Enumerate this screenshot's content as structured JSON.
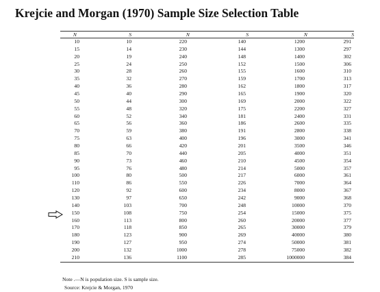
{
  "title": "Krejcie and Morgan (1970) Sample Size Selection Table",
  "headers": [
    "N",
    "S",
    "N",
    "S",
    "N",
    "S"
  ],
  "rows": [
    [
      "10",
      "10",
      "220",
      "140",
      "1200",
      "291"
    ],
    [
      "15",
      "14",
      "230",
      "144",
      "1300",
      "297"
    ],
    [
      "20",
      "19",
      "240",
      "148",
      "1400",
      "302"
    ],
    [
      "25",
      "24",
      "250",
      "152",
      "1500",
      "306"
    ],
    [
      "30",
      "28",
      "260",
      "155",
      "1600",
      "310"
    ],
    [
      "35",
      "32",
      "270",
      "159",
      "1700",
      "313"
    ],
    [
      "40",
      "36",
      "280",
      "162",
      "1800",
      "317"
    ],
    [
      "45",
      "40",
      "290",
      "165",
      "1900",
      "320"
    ],
    [
      "50",
      "44",
      "300",
      "169",
      "2000",
      "322"
    ],
    [
      "55",
      "48",
      "320",
      "175",
      "2200",
      "327"
    ],
    [
      "60",
      "52",
      "340",
      "181",
      "2400",
      "331"
    ],
    [
      "65",
      "56",
      "360",
      "186",
      "2600",
      "335"
    ],
    [
      "70",
      "59",
      "380",
      "191",
      "2800",
      "338"
    ],
    [
      "75",
      "63",
      "400",
      "196",
      "3000",
      "341"
    ],
    [
      "80",
      "66",
      "420",
      "201",
      "3500",
      "346"
    ],
    [
      "85",
      "70",
      "440",
      "205",
      "4000",
      "351"
    ],
    [
      "90",
      "73",
      "460",
      "210",
      "4500",
      "354"
    ],
    [
      "95",
      "76",
      "480",
      "214",
      "5000",
      "357"
    ],
    [
      "100",
      "80",
      "500",
      "217",
      "6000",
      "361"
    ],
    [
      "110",
      "86",
      "550",
      "226",
      "7000",
      "364"
    ],
    [
      "120",
      "92",
      "600",
      "234",
      "8000",
      "367"
    ],
    [
      "130",
      "97",
      "650",
      "242",
      "9000",
      "368"
    ],
    [
      "140",
      "103",
      "700",
      "248",
      "10000",
      "370"
    ],
    [
      "150",
      "108",
      "750",
      "254",
      "15000",
      "375"
    ],
    [
      "160",
      "113",
      "800",
      "260",
      "20000",
      "377"
    ],
    [
      "170",
      "118",
      "850",
      "265",
      "30000",
      "379"
    ],
    [
      "180",
      "123",
      "900",
      "269",
      "40000",
      "380"
    ],
    [
      "190",
      "127",
      "950",
      "274",
      "50000",
      "381"
    ],
    [
      "200",
      "132",
      "1000",
      "278",
      "75000",
      "382"
    ],
    [
      "210",
      "136",
      "1100",
      "285",
      "1000000",
      "384"
    ]
  ],
  "note": "Note .—N is population size.   S is sample size.",
  "source": "Source: Krejcie & Morgan, 1970"
}
